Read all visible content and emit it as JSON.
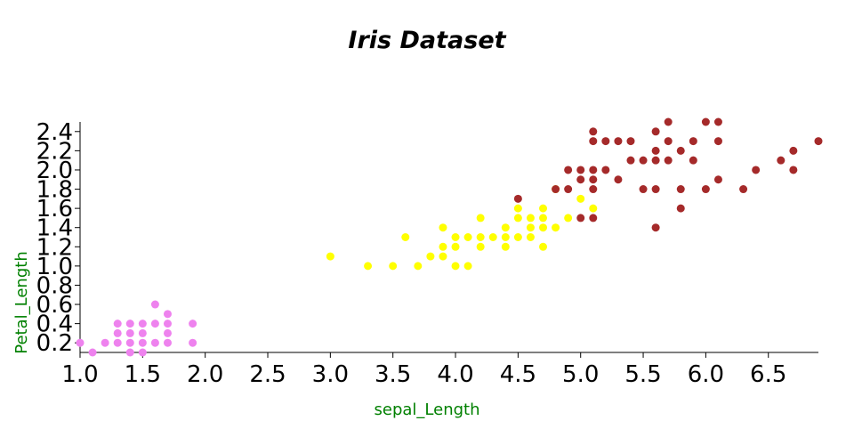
{
  "chart_data": {
    "type": "scatter",
    "title": "Iris Dataset",
    "xlabel": "sepal_Length",
    "ylabel": "Petal_Length",
    "xlim": [
      1.0,
      6.9
    ],
    "ylim": [
      0.1,
      2.5
    ],
    "x_ticks": [
      "1.0",
      "1.5",
      "2.0",
      "2.5",
      "3.0",
      "3.5",
      "4.0",
      "4.5",
      "5.0",
      "5.5",
      "6.0",
      "6.5"
    ],
    "y_ticks": [
      "0.2",
      "0.4",
      "0.6",
      "0.8",
      "1.0",
      "1.2",
      "1.4",
      "1.6",
      "1.8",
      "2.0",
      "2.2",
      "2.4"
    ],
    "grid": false,
    "series": [
      {
        "color": "#ee82ee",
        "points": [
          [
            1.0,
            0.2
          ],
          [
            1.1,
            0.1
          ],
          [
            1.2,
            0.2
          ],
          [
            1.3,
            0.2
          ],
          [
            1.3,
            0.3
          ],
          [
            1.3,
            0.4
          ],
          [
            1.4,
            0.1
          ],
          [
            1.4,
            0.2
          ],
          [
            1.4,
            0.3
          ],
          [
            1.4,
            0.4
          ],
          [
            1.5,
            0.1
          ],
          [
            1.5,
            0.2
          ],
          [
            1.5,
            0.3
          ],
          [
            1.5,
            0.4
          ],
          [
            1.6,
            0.2
          ],
          [
            1.6,
            0.4
          ],
          [
            1.6,
            0.6
          ],
          [
            1.7,
            0.2
          ],
          [
            1.7,
            0.3
          ],
          [
            1.7,
            0.4
          ],
          [
            1.7,
            0.5
          ],
          [
            1.9,
            0.2
          ],
          [
            1.9,
            0.4
          ]
        ]
      },
      {
        "color": "#ffff00",
        "points": [
          [
            3.0,
            1.1
          ],
          [
            3.3,
            1.0
          ],
          [
            3.5,
            1.0
          ],
          [
            3.6,
            1.3
          ],
          [
            3.7,
            1.0
          ],
          [
            3.8,
            1.1
          ],
          [
            3.9,
            1.1
          ],
          [
            3.9,
            1.2
          ],
          [
            3.9,
            1.4
          ],
          [
            4.0,
            1.0
          ],
          [
            4.0,
            1.2
          ],
          [
            4.0,
            1.3
          ],
          [
            4.1,
            1.0
          ],
          [
            4.1,
            1.3
          ],
          [
            4.2,
            1.2
          ],
          [
            4.2,
            1.3
          ],
          [
            4.2,
            1.5
          ],
          [
            4.3,
            1.3
          ],
          [
            4.4,
            1.2
          ],
          [
            4.4,
            1.3
          ],
          [
            4.4,
            1.4
          ],
          [
            4.5,
            1.3
          ],
          [
            4.5,
            1.5
          ],
          [
            4.5,
            1.6
          ],
          [
            4.6,
            1.3
          ],
          [
            4.6,
            1.4
          ],
          [
            4.6,
            1.5
          ],
          [
            4.7,
            1.2
          ],
          [
            4.7,
            1.4
          ],
          [
            4.7,
            1.5
          ],
          [
            4.7,
            1.6
          ],
          [
            4.8,
            1.4
          ],
          [
            4.8,
            1.8
          ],
          [
            4.9,
            1.5
          ],
          [
            5.0,
            1.7
          ],
          [
            5.1,
            1.6
          ]
        ]
      },
      {
        "color": "#a52a2a",
        "points": [
          [
            4.5,
            1.7
          ],
          [
            4.8,
            1.8
          ],
          [
            4.9,
            1.8
          ],
          [
            4.9,
            2.0
          ],
          [
            5.0,
            1.5
          ],
          [
            5.0,
            1.9
          ],
          [
            5.0,
            2.0
          ],
          [
            5.1,
            1.5
          ],
          [
            5.1,
            1.8
          ],
          [
            5.1,
            1.9
          ],
          [
            5.1,
            2.0
          ],
          [
            5.1,
            2.3
          ],
          [
            5.1,
            2.4
          ],
          [
            5.2,
            2.0
          ],
          [
            5.2,
            2.3
          ],
          [
            5.3,
            1.9
          ],
          [
            5.3,
            2.3
          ],
          [
            5.4,
            2.1
          ],
          [
            5.4,
            2.3
          ],
          [
            5.5,
            1.8
          ],
          [
            5.5,
            2.1
          ],
          [
            5.6,
            1.4
          ],
          [
            5.6,
            1.8
          ],
          [
            5.6,
            2.1
          ],
          [
            5.6,
            2.2
          ],
          [
            5.6,
            2.4
          ],
          [
            5.7,
            2.1
          ],
          [
            5.7,
            2.3
          ],
          [
            5.7,
            2.5
          ],
          [
            5.8,
            1.6
          ],
          [
            5.8,
            1.8
          ],
          [
            5.8,
            2.2
          ],
          [
            5.9,
            2.1
          ],
          [
            5.9,
            2.3
          ],
          [
            6.0,
            1.8
          ],
          [
            6.0,
            2.5
          ],
          [
            6.1,
            1.9
          ],
          [
            6.1,
            2.3
          ],
          [
            6.1,
            2.5
          ],
          [
            6.3,
            1.8
          ],
          [
            6.4,
            2.0
          ],
          [
            6.6,
            2.1
          ],
          [
            6.7,
            2.0
          ],
          [
            6.7,
            2.2
          ],
          [
            6.9,
            2.3
          ]
        ]
      }
    ]
  }
}
